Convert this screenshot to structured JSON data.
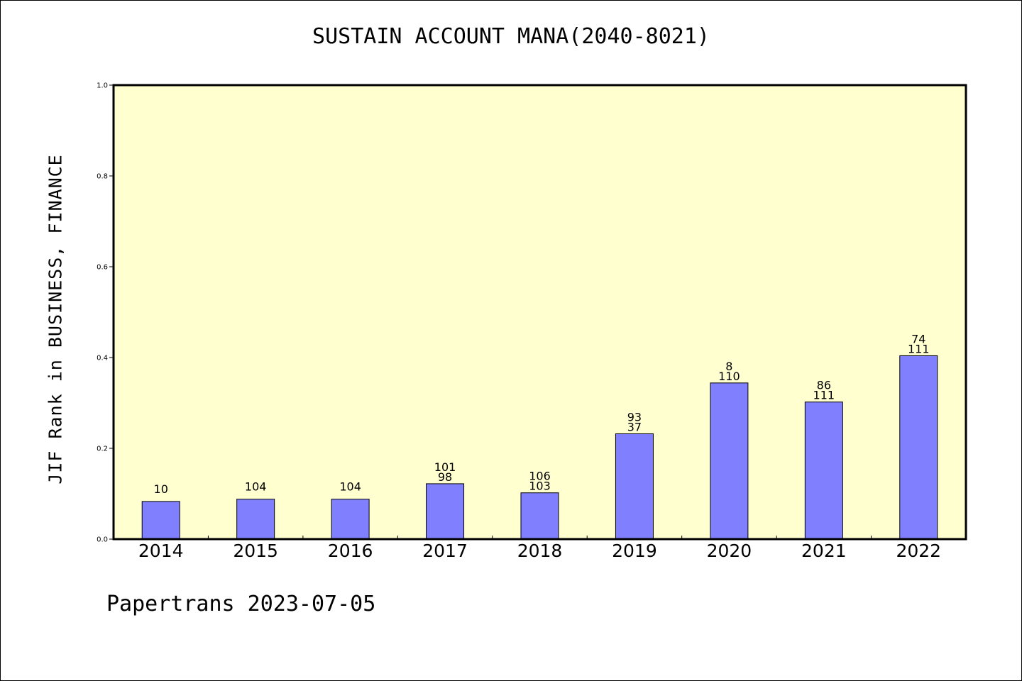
{
  "chart_data": {
    "type": "bar",
    "title": "SUSTAIN ACCOUNT MANA(2040-8021)",
    "ylabel": "JIF Rank in BUSINESS, FINANCE",
    "xlabel": "",
    "ylim": [
      0,
      1.0
    ],
    "yticks": [
      "0.0",
      "0.2",
      "0.4",
      "0.6",
      "0.8",
      "1.0"
    ],
    "categories": [
      "2014",
      "2015",
      "2016",
      "2017",
      "2018",
      "2019",
      "2020",
      "2021",
      "2022"
    ],
    "values": [
      0.083,
      0.088,
      0.088,
      0.122,
      0.102,
      0.232,
      0.344,
      0.302,
      0.404
    ],
    "labels_top": [
      "10",
      "104",
      "104",
      "101",
      "106",
      "93",
      "8",
      "86",
      "74"
    ],
    "labels_bottom": [
      "",
      "",
      "",
      "98",
      "103",
      "37",
      "110",
      "111",
      "111"
    ],
    "grid": false,
    "plot_background": "#ffffd0",
    "bar_color": "#8080ff"
  },
  "footer": "Papertrans 2023-07-05"
}
